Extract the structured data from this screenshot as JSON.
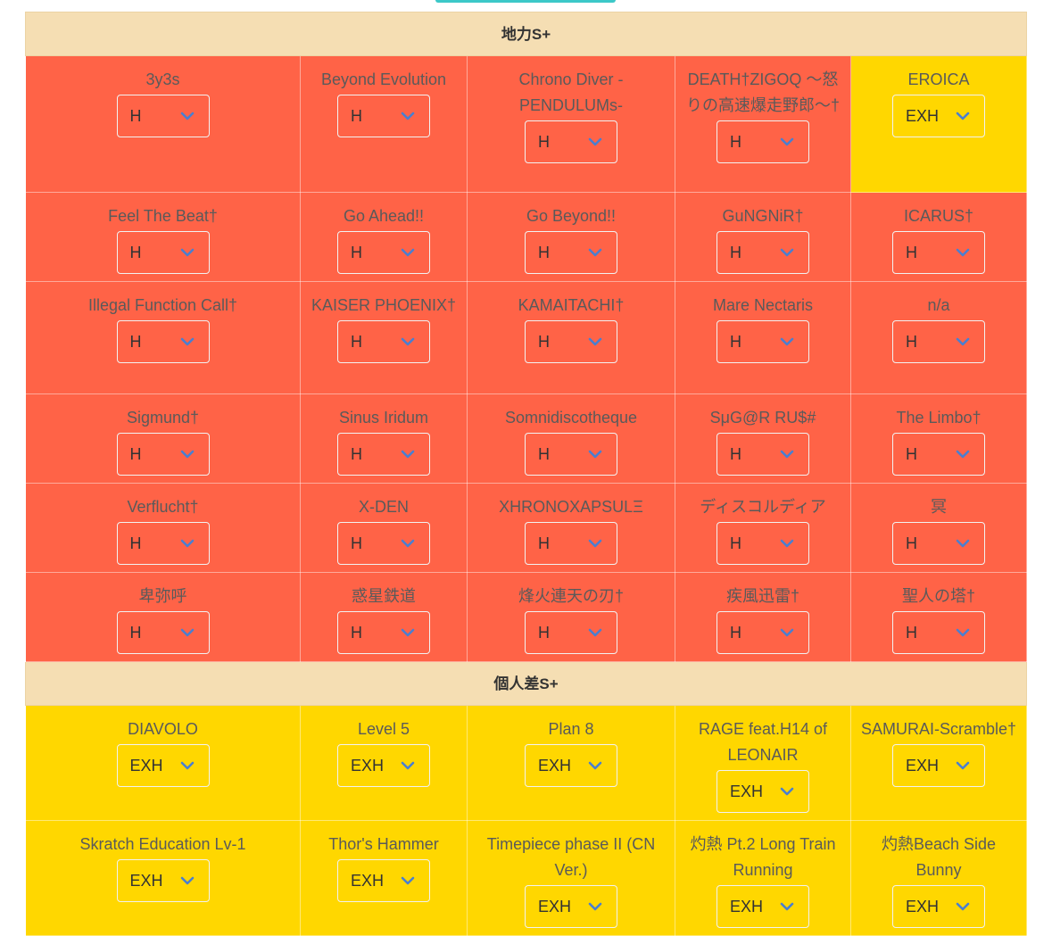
{
  "colors": {
    "header_bg": "#f5deb3",
    "level_h": "#ff6347",
    "level_exh": "#ffd700",
    "chevron": "#4a7fd0"
  },
  "sections": [
    {
      "title": "地力S+",
      "rows": [
        [
          {
            "title": "3y3s",
            "level": "H"
          },
          {
            "title": "Beyond Evolution",
            "level": "H"
          },
          {
            "title": "Chrono Diver -PENDULUMs-",
            "level": "H"
          },
          {
            "title": "DEATH†ZIGOQ 〜怒りの高速爆走野郎〜†",
            "level": "H"
          },
          {
            "title": "EROICA",
            "level": "EXH"
          }
        ],
        [
          {
            "title": "Feel The Beat†",
            "level": "H"
          },
          {
            "title": "Go Ahead!!",
            "level": "H"
          },
          {
            "title": "Go Beyond!!",
            "level": "H"
          },
          {
            "title": "GuNGNiR†",
            "level": "H"
          },
          {
            "title": "ICARUS†",
            "level": "H"
          }
        ],
        [
          {
            "title": "Illegal Function Call†",
            "level": "H"
          },
          {
            "title": "KAISER PHOENIX†",
            "level": "H"
          },
          {
            "title": "KAMAITACHI†",
            "level": "H"
          },
          {
            "title": "Mare Nectaris",
            "level": "H"
          },
          {
            "title": "n/a",
            "level": "H"
          }
        ],
        [
          {
            "title": "Sigmund†",
            "level": "H"
          },
          {
            "title": "Sinus Iridum",
            "level": "H"
          },
          {
            "title": "Somnidiscotheque",
            "level": "H"
          },
          {
            "title": "SμG@R RU$#",
            "level": "H"
          },
          {
            "title": "The Limbo†",
            "level": "H"
          }
        ],
        [
          {
            "title": "Verflucht†",
            "level": "H"
          },
          {
            "title": "X-DEN",
            "level": "H"
          },
          {
            "title": "XHRONOXAPSULΞ",
            "level": "H"
          },
          {
            "title": "ディスコルディア",
            "level": "H"
          },
          {
            "title": "冥",
            "level": "H"
          }
        ],
        [
          {
            "title": "卑弥呼",
            "level": "H"
          },
          {
            "title": "惑星鉄道",
            "level": "H"
          },
          {
            "title": "烽火連天の刃†",
            "level": "H"
          },
          {
            "title": "疾風迅雷†",
            "level": "H"
          },
          {
            "title": "聖人の塔†",
            "level": "H"
          }
        ]
      ]
    },
    {
      "title": "個人差S+",
      "rows": [
        [
          {
            "title": "DIAVOLO",
            "level": "EXH"
          },
          {
            "title": "Level 5",
            "level": "EXH"
          },
          {
            "title": "Plan 8",
            "level": "EXH"
          },
          {
            "title": "RAGE feat.H14 of LEONAIR",
            "level": "EXH"
          },
          {
            "title": "SAMURAI-Scramble†",
            "level": "EXH"
          }
        ],
        [
          {
            "title": "Skratch Education Lv-1",
            "level": "EXH"
          },
          {
            "title": "Thor's Hammer",
            "level": "EXH"
          },
          {
            "title": "Timepiece phase II (CN Ver.)",
            "level": "EXH"
          },
          {
            "title": "灼熱 Pt.2 Long Train Running",
            "level": "EXH"
          },
          {
            "title": "灼熱Beach Side Bunny",
            "level": "EXH"
          }
        ]
      ]
    }
  ]
}
